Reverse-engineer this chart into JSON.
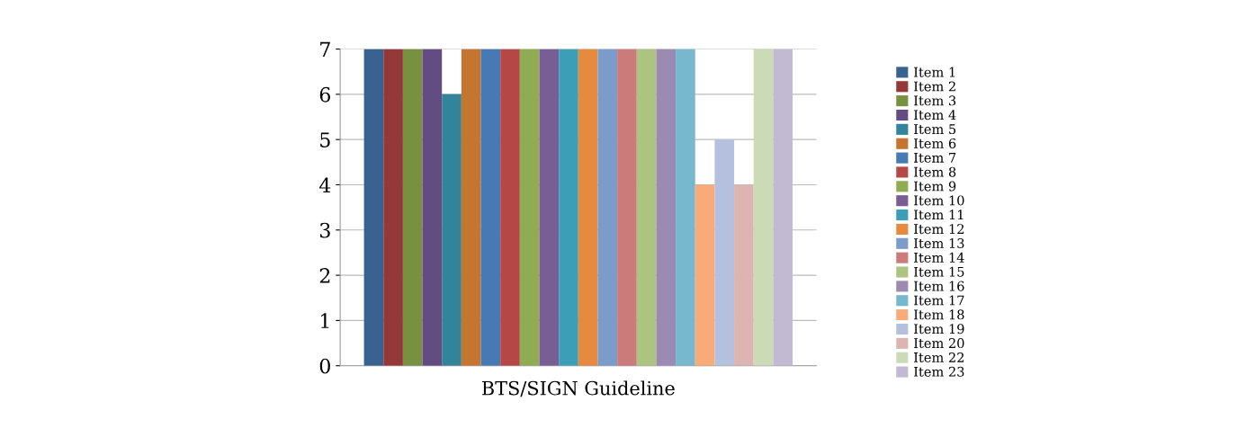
{
  "chart_data": {
    "type": "bar",
    "categories": [
      "BTS/SIGN Guideline"
    ],
    "series": [
      {
        "name": "Item 1",
        "color": "#386391",
        "values": [
          7
        ]
      },
      {
        "name": "Item 2",
        "color": "#93393a",
        "values": [
          7
        ]
      },
      {
        "name": "Item 3",
        "color": "#779141",
        "values": [
          7
        ]
      },
      {
        "name": "Item 4",
        "color": "#624c82",
        "values": [
          7
        ]
      },
      {
        "name": "Item 5",
        "color": "#31849a",
        "values": [
          6
        ]
      },
      {
        "name": "Item 6",
        "color": "#c47530",
        "values": [
          7
        ]
      },
      {
        "name": "Item 7",
        "color": "#4779b4",
        "values": [
          7
        ]
      },
      {
        "name": "Item 8",
        "color": "#b54847",
        "values": [
          7
        ]
      },
      {
        "name": "Item 9",
        "color": "#90ac53",
        "values": [
          7
        ]
      },
      {
        "name": "Item 10",
        "color": "#785d96",
        "values": [
          7
        ]
      },
      {
        "name": "Item 11",
        "color": "#3c9fb7",
        "values": [
          7
        ]
      },
      {
        "name": "Item 12",
        "color": "#e68a3f",
        "values": [
          7
        ]
      },
      {
        "name": "Item 13",
        "color": "#7b9cc9",
        "values": [
          7
        ]
      },
      {
        "name": "Item 14",
        "color": "#cb7b7a",
        "values": [
          7
        ]
      },
      {
        "name": "Item 15",
        "color": "#adc481",
        "values": [
          7
        ]
      },
      {
        "name": "Item 16",
        "color": "#9b8ab2",
        "values": [
          7
        ]
      },
      {
        "name": "Item 17",
        "color": "#77b8cf",
        "values": [
          7
        ]
      },
      {
        "name": "Item 18",
        "color": "#f8aa78",
        "values": [
          4
        ]
      },
      {
        "name": "Item 19",
        "color": "#b4c0dd",
        "values": [
          5
        ]
      },
      {
        "name": "Item 20",
        "color": "#dcb5b3",
        "values": [
          4
        ]
      },
      {
        "name": "Item 22",
        "color": "#cbdbb7",
        "values": [
          7
        ]
      },
      {
        "name": "Item 23",
        "color": "#c2b9d2",
        "values": [
          7
        ]
      }
    ],
    "ylim": [
      0,
      7
    ],
    "yticks": [
      0,
      1,
      2,
      3,
      4,
      5,
      6,
      7
    ],
    "grid": "y",
    "legend": "right"
  }
}
